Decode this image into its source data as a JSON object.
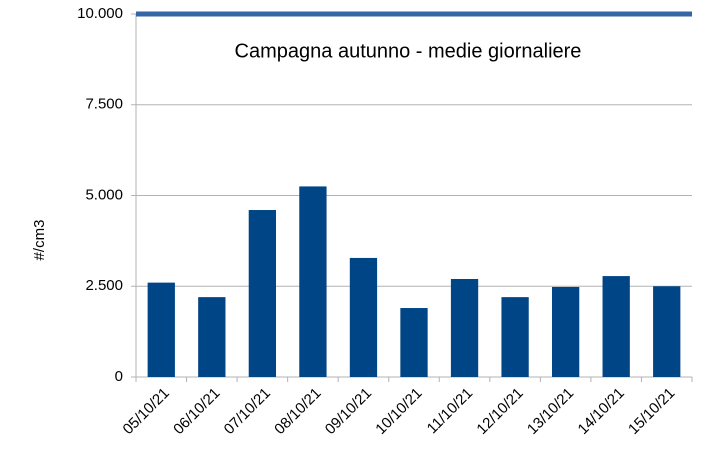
{
  "chart_data": {
    "type": "bar",
    "title": "Campagna autunno - medie giornaliere",
    "y_label": "#/cm3",
    "categories": [
      "05/10/21",
      "06/10/21",
      "07/10/21",
      "08/10/21",
      "09/10/21",
      "10/10/21",
      "11/10/21",
      "12/10/21",
      "13/10/21",
      "14/10/21",
      "15/10/21"
    ],
    "values": [
      2600,
      2200,
      4600,
      5250,
      3280,
      1900,
      2700,
      2200,
      2480,
      2780,
      2500
    ],
    "color": "#004586",
    "reference_line": 10000,
    "reference_color": "#3465a4",
    "ylim": [
      0,
      10000
    ],
    "yticks": [
      0,
      {
        "value": 2500,
        "label": "2.500"
      },
      {
        "value": 5000,
        "label": "5.000"
      },
      {
        "value": 7500,
        "label": "7.500"
      },
      {
        "value": 10000,
        "label": "10.000"
      }
    ],
    "grid": true
  }
}
